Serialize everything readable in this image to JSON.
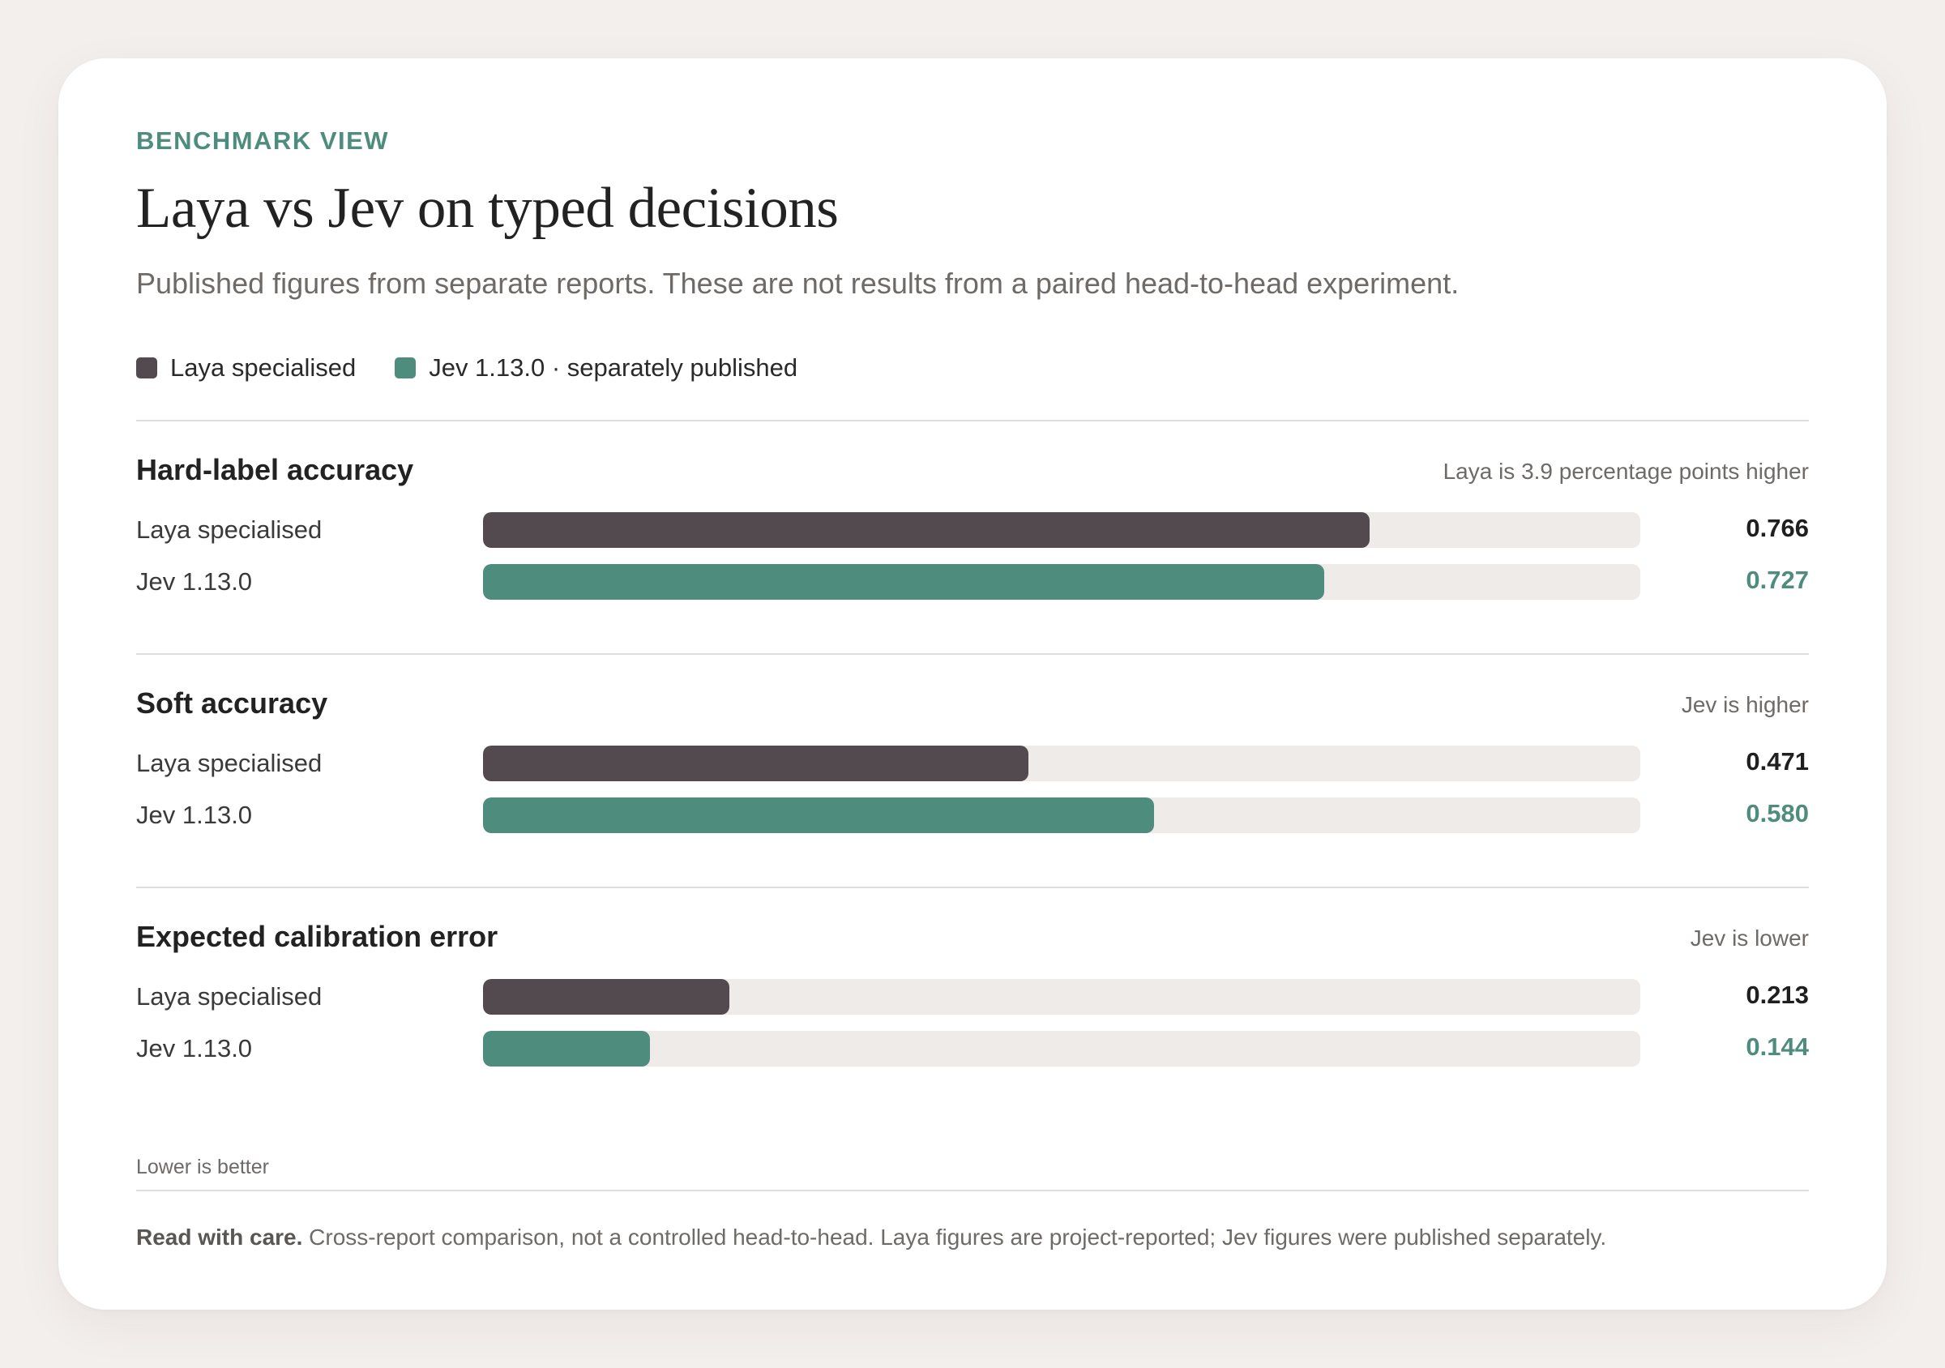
{
  "header": {
    "eyebrow": "BENCHMARK VIEW",
    "title": "Laya vs Jev on typed decisions",
    "subtitle": "Published figures from separate reports. These are not results from a paired head-to-head experiment."
  },
  "legend": [
    {
      "label": "Laya specialised",
      "color": "#524a4e"
    },
    {
      "label": "Jev 1.13.0 · separately published",
      "color": "#4e8c7d"
    }
  ],
  "chart_data": {
    "type": "bar",
    "orientation": "horizontal",
    "xlim": [
      0,
      1
    ],
    "grid": false,
    "legend_position": "top-left",
    "panels": [
      {
        "title": "Hard-label accuracy",
        "note": "Laya is 3.9 percentage points higher",
        "rows": [
          {
            "label": "Laya specialised",
            "value": 0.766,
            "display": "0.766",
            "series": 0
          },
          {
            "label": "Jev 1.13.0",
            "value": 0.727,
            "display": "0.727",
            "series": 1
          }
        ],
        "footnote": ""
      },
      {
        "title": "Soft accuracy",
        "note": "Jev is higher",
        "rows": [
          {
            "label": "Laya specialised",
            "value": 0.471,
            "display": "0.471",
            "series": 0
          },
          {
            "label": "Jev 1.13.0",
            "value": 0.58,
            "display": "0.580",
            "series": 1
          }
        ],
        "footnote": ""
      },
      {
        "title": "Expected calibration error",
        "note": "Jev is lower",
        "rows": [
          {
            "label": "Laya specialised",
            "value": 0.213,
            "display": "0.213",
            "series": 0
          },
          {
            "label": "Jev 1.13.0",
            "value": 0.144,
            "display": "0.144",
            "series": 1
          }
        ],
        "footnote": "Lower is better"
      }
    ]
  },
  "colors": {
    "laya": "#524a4e",
    "jev": "#4e8c7d",
    "laya_value_text": "#1f1f1f",
    "jev_value_text": "#4e8c7d"
  },
  "footer": {
    "lead": "Read with care.",
    "text": " Cross-report comparison, not a controlled head-to-head. Laya figures are project-reported; Jev figures were published separately."
  }
}
